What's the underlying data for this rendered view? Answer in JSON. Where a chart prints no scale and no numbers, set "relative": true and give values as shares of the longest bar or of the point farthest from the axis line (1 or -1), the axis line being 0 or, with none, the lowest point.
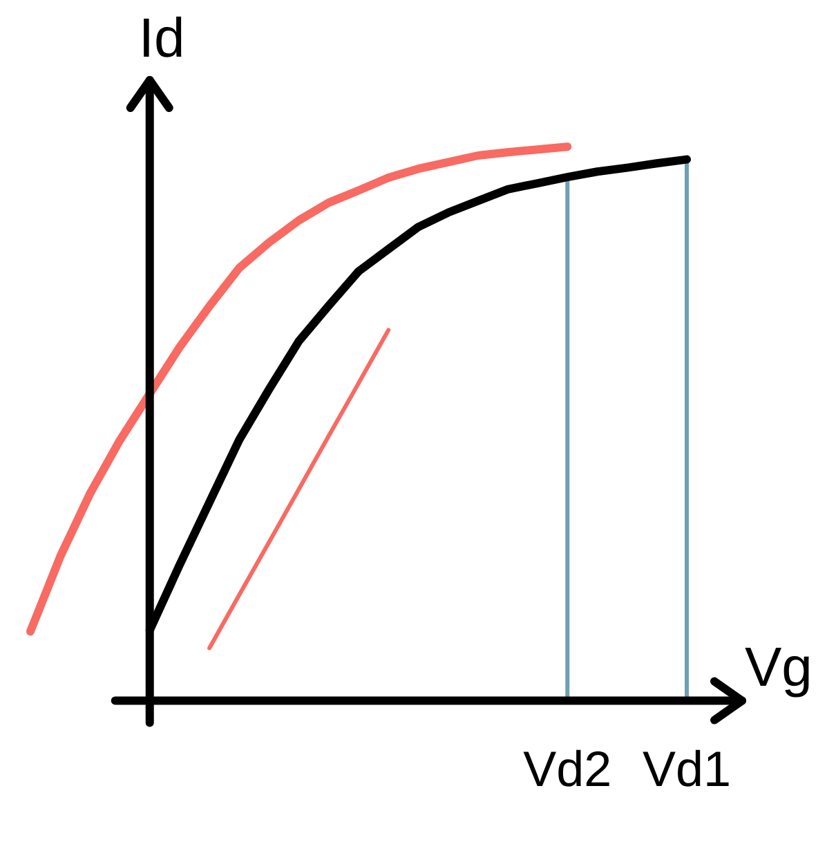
{
  "chart_data": {
    "type": "line",
    "relative": true,
    "xlabel": "Vg",
    "ylabel": "Id",
    "categories": [
      null,
      null,
      null,
      null,
      null,
      null,
      null,
      null,
      null,
      null,
      null,
      null,
      null,
      null,
      null,
      null,
      null,
      null,
      "Vd2",
      null,
      null,
      null,
      "Vd1"
    ],
    "series": [
      {
        "color": "#f86a62",
        "values": [
          0.125,
          0.26,
          0.374,
          0.47,
          0.554,
          0.638,
          0.712,
          0.781,
          0.827,
          0.867,
          0.899,
          0.921,
          0.944,
          0.96,
          0.972,
          0.984,
          0.99,
          0.995,
          1,
          null,
          null,
          null,
          null
        ]
      },
      {
        "color": "#000000",
        "values": [
          null,
          null,
          null,
          null,
          0.127,
          0.245,
          0.358,
          0.471,
          0.562,
          0.649,
          0.713,
          0.775,
          0.815,
          0.855,
          0.881,
          0.902,
          0.923,
          0.934,
          0.945,
          0.955,
          0.962,
          0.97,
          0.977
        ]
      },
      {
        "color": "#f86a62",
        "values": [
          null,
          null,
          null,
          null,
          null,
          null,
          0.095,
          0.191,
          0.286,
          0.382,
          0.478,
          0.573,
          0.669,
          null,
          null,
          null,
          null,
          null,
          null,
          null,
          null,
          null,
          null
        ]
      }
    ],
    "ref_lines": [
      {
        "axis": "x",
        "value": "Vd2",
        "color": "#6e9fb5"
      },
      {
        "axis": "x",
        "value": "Vd1",
        "color": "#6e9fb5"
      }
    ]
  }
}
